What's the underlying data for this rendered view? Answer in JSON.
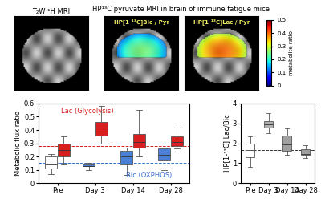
{
  "images": {
    "anatomical_title": "T₂W ¹H MRI",
    "group_title": "HP¹³C pyruvate MRI in brain of immune fatigue mice",
    "panels": [
      "HP[1-¹³C]Bic / Pyr",
      "HP[1-¹³C]Lac / Pyr"
    ],
    "colorbar": {
      "label": "metabolite ratio",
      "lim": [
        0,
        0.5
      ],
      "ticks": [
        0,
        0.1,
        0.2,
        0.3,
        0.4,
        0.5
      ]
    }
  },
  "chart_data": [
    {
      "type": "box",
      "ylabel": "Metabolic flux ratio",
      "categories": [
        "Pre",
        "Day 3",
        "Day 14",
        "Day 28"
      ],
      "ylim": [
        0,
        0.6
      ],
      "yticks": [
        0,
        0.1,
        0.2,
        0.3,
        0.4,
        0.5,
        0.6
      ],
      "series": [
        {
          "name": "Bic (OXPHOS)",
          "color": "#3a6fd0",
          "colors": [
            "#ffffff",
            "#4a7fd6",
            "#4a7fd6",
            "#4a7fd6"
          ],
          "reference": 0.15,
          "boxes": [
            {
              "whislo": 0.07,
              "q1": 0.11,
              "med": 0.14,
              "q3": 0.2,
              "whishi": 0.22
            },
            {
              "whislo": 0.1,
              "q1": 0.125,
              "med": 0.13,
              "q3": 0.14,
              "whishi": 0.15
            },
            {
              "whislo": 0.06,
              "q1": 0.14,
              "med": 0.2,
              "q3": 0.24,
              "whishi": 0.27
            },
            {
              "whislo": 0.1,
              "q1": 0.17,
              "med": 0.21,
              "q3": 0.26,
              "whishi": 0.3
            }
          ]
        },
        {
          "name": "Lac (Glycolysis)",
          "color": "#d81e1e",
          "colors": [
            "#d81e1e",
            "#d81e1e",
            "#d81e1e",
            "#d81e1e"
          ],
          "reference": 0.28,
          "boxes": [
            {
              "whislo": 0.14,
              "q1": 0.2,
              "med": 0.25,
              "q3": 0.3,
              "whishi": 0.35
            },
            {
              "whislo": 0.3,
              "q1": 0.36,
              "med": 0.39,
              "q3": 0.46,
              "whishi": 0.58
            },
            {
              "whislo": 0.2,
              "q1": 0.27,
              "med": 0.31,
              "q3": 0.37,
              "whishi": 0.55
            },
            {
              "whislo": 0.26,
              "q1": 0.28,
              "med": 0.31,
              "q3": 0.35,
              "whishi": 0.42
            }
          ]
        }
      ]
    },
    {
      "type": "box",
      "ylabel": "HP[1-¹³C] Lac/Bic",
      "categories": [
        "Pre",
        "Day 3",
        "Day 14",
        "Day 28"
      ],
      "ylim": [
        0,
        4
      ],
      "yticks": [
        0,
        1,
        2,
        3,
        4
      ],
      "colors": [
        "#ffffff",
        "#b0b0b0",
        "#a0a0a0",
        "#a0a0a0"
      ],
      "reference": 1.65,
      "boxes": [
        {
          "whislo": 0.8,
          "q1": 1.3,
          "med": 1.65,
          "q3": 2.0,
          "whishi": 2.35
        },
        {
          "whislo": 2.5,
          "q1": 2.8,
          "med": 2.95,
          "q3": 3.1,
          "whishi": 3.5
        },
        {
          "whislo": 1.4,
          "q1": 1.6,
          "med": 1.95,
          "q3": 2.4,
          "whishi": 2.75
        },
        {
          "whislo": 1.25,
          "q1": 1.4,
          "med": 1.45,
          "q3": 1.7,
          "whishi": 1.9
        }
      ]
    }
  ]
}
